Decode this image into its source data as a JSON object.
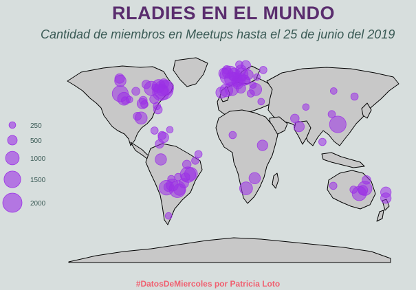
{
  "title": "RLADIES EN EL MUNDO",
  "subtitle": "Cantidad de miembros en Meetups hasta el 25 de junio del 2019",
  "caption": "#DatosDeMiercoles por Patricia Loto",
  "colors": {
    "bubble": "#9b30e6",
    "land": "#c8c8c8",
    "background": "#d7dedd"
  },
  "legend": [
    {
      "label": "250",
      "members": 250
    },
    {
      "label": "500",
      "members": 500
    },
    {
      "label": "1000",
      "members": 1000
    },
    {
      "label": "1500",
      "members": 1500
    },
    {
      "label": "2000",
      "members": 2000
    }
  ],
  "chapters": [
    {
      "lon": -122.4,
      "lat": 37.8,
      "members": 1400
    },
    {
      "lon": -122.3,
      "lat": 47.6,
      "members": 700
    },
    {
      "lon": -118.2,
      "lat": 34.0,
      "members": 900
    },
    {
      "lon": -117.1,
      "lat": 32.7,
      "members": 300
    },
    {
      "lon": -123.1,
      "lat": 49.3,
      "members": 500
    },
    {
      "lon": -112.1,
      "lat": 33.4,
      "members": 250
    },
    {
      "lon": -104.9,
      "lat": 39.7,
      "members": 350
    },
    {
      "lon": -97.7,
      "lat": 30.3,
      "members": 600
    },
    {
      "lon": -96.8,
      "lat": 32.8,
      "members": 350
    },
    {
      "lon": -95.4,
      "lat": 29.8,
      "members": 300
    },
    {
      "lon": -93.3,
      "lat": 44.9,
      "members": 400
    },
    {
      "lon": -87.6,
      "lat": 41.9,
      "members": 1100
    },
    {
      "lon": -84.4,
      "lat": 33.7,
      "members": 450
    },
    {
      "lon": -83.0,
      "lat": 42.3,
      "members": 300
    },
    {
      "lon": -79.4,
      "lat": 43.7,
      "members": 900
    },
    {
      "lon": -77.0,
      "lat": 38.9,
      "members": 1500
    },
    {
      "lon": -75.2,
      "lat": 40.0,
      "members": 600
    },
    {
      "lon": -74.0,
      "lat": 40.7,
      "members": 2000
    },
    {
      "lon": -71.1,
      "lat": 42.4,
      "members": 1200
    },
    {
      "lon": -73.6,
      "lat": 45.5,
      "members": 500
    },
    {
      "lon": -80.2,
      "lat": 25.8,
      "members": 400
    },
    {
      "lon": -81.4,
      "lat": 28.5,
      "members": 300
    },
    {
      "lon": -99.1,
      "lat": 19.4,
      "members": 800
    },
    {
      "lon": -103.3,
      "lat": 20.7,
      "members": 350
    },
    {
      "lon": -84.1,
      "lat": 9.9,
      "members": 300
    },
    {
      "lon": -74.1,
      "lat": 4.7,
      "members": 600
    },
    {
      "lon": -75.6,
      "lat": 6.2,
      "members": 350
    },
    {
      "lon": -78.5,
      "lat": -0.2,
      "members": 400
    },
    {
      "lon": -77.0,
      "lat": -12.0,
      "members": 700
    },
    {
      "lon": -66.9,
      "lat": 10.5,
      "members": 250
    },
    {
      "lon": -43.2,
      "lat": -22.9,
      "members": 900
    },
    {
      "lon": -46.6,
      "lat": -23.5,
      "members": 1300
    },
    {
      "lon": -49.3,
      "lat": -25.4,
      "members": 400
    },
    {
      "lon": -51.2,
      "lat": -30.0,
      "members": 500
    },
    {
      "lon": -47.9,
      "lat": -15.8,
      "members": 400
    },
    {
      "lon": -38.5,
      "lat": -12.9,
      "members": 300
    },
    {
      "lon": -34.9,
      "lat": -8.0,
      "members": 300
    },
    {
      "lon": -58.4,
      "lat": -34.6,
      "members": 1500
    },
    {
      "lon": -64.2,
      "lat": -31.4,
      "members": 800
    },
    {
      "lon": -65.2,
      "lat": -26.8,
      "members": 300
    },
    {
      "lon": -68.8,
      "lat": -32.9,
      "members": 400
    },
    {
      "lon": -70.6,
      "lat": -33.4,
      "members": 1200
    },
    {
      "lon": -56.2,
      "lat": -34.9,
      "members": 700
    },
    {
      "lon": -57.6,
      "lat": -25.3,
      "members": 300
    },
    {
      "lon": -68.3,
      "lat": -54.8,
      "members": 250
    },
    {
      "lon": -0.1,
      "lat": 51.5,
      "members": 2000
    },
    {
      "lon": -2.2,
      "lat": 53.5,
      "members": 600
    },
    {
      "lon": -3.2,
      "lat": 55.9,
      "members": 400
    },
    {
      "lon": -6.3,
      "lat": 53.3,
      "members": 600
    },
    {
      "lon": 2.3,
      "lat": 48.9,
      "members": 1100
    },
    {
      "lon": 4.9,
      "lat": 52.4,
      "members": 900
    },
    {
      "lon": 4.4,
      "lat": 50.8,
      "members": 400
    },
    {
      "lon": 8.7,
      "lat": 50.1,
      "members": 500
    },
    {
      "lon": 13.4,
      "lat": 52.5,
      "members": 900
    },
    {
      "lon": 11.6,
      "lat": 48.1,
      "members": 600
    },
    {
      "lon": 8.5,
      "lat": 47.4,
      "members": 700
    },
    {
      "lon": 16.4,
      "lat": 48.2,
      "members": 600
    },
    {
      "lon": 12.6,
      "lat": 55.7,
      "members": 600
    },
    {
      "lon": 18.1,
      "lat": 59.3,
      "members": 500
    },
    {
      "lon": 10.8,
      "lat": 59.9,
      "members": 300
    },
    {
      "lon": 21.0,
      "lat": 52.2,
      "members": 500
    },
    {
      "lon": 14.4,
      "lat": 50.1,
      "members": 300
    },
    {
      "lon": 19.0,
      "lat": 47.5,
      "members": 300
    },
    {
      "lon": -3.7,
      "lat": 40.4,
      "members": 900
    },
    {
      "lon": 2.2,
      "lat": 41.4,
      "members": 1000
    },
    {
      "lon": -9.1,
      "lat": 38.7,
      "members": 700
    },
    {
      "lon": 9.2,
      "lat": 45.5,
      "members": 600
    },
    {
      "lon": 12.5,
      "lat": 41.9,
      "members": 500
    },
    {
      "lon": 23.7,
      "lat": 38.0,
      "members": 300
    },
    {
      "lon": 26.1,
      "lat": 44.4,
      "members": 250
    },
    {
      "lon": 29.0,
      "lat": 41.0,
      "members": 800
    },
    {
      "lon": 37.6,
      "lat": 55.8,
      "members": 300
    },
    {
      "lon": 30.5,
      "lat": 50.4,
      "members": 250
    },
    {
      "lon": 35.2,
      "lat": 31.8,
      "members": 250
    },
    {
      "lon": 3.4,
      "lat": 6.5,
      "members": 300
    },
    {
      "lon": 36.8,
      "lat": -1.3,
      "members": 600
    },
    {
      "lon": 28.0,
      "lat": -26.2,
      "members": 700
    },
    {
      "lon": 18.4,
      "lat": -33.9,
      "members": 900
    },
    {
      "lon": 72.9,
      "lat": 19.1,
      "members": 400
    },
    {
      "lon": 77.6,
      "lat": 12.9,
      "members": 600
    },
    {
      "lon": 85.3,
      "lat": 27.7,
      "members": 250
    },
    {
      "lon": 103.8,
      "lat": 1.3,
      "members": 300
    },
    {
      "lon": 114.2,
      "lat": 22.3,
      "members": 300
    },
    {
      "lon": 121.0,
      "lat": 14.6,
      "members": 1500
    },
    {
      "lon": 116.4,
      "lat": 39.9,
      "members": 250
    },
    {
      "lon": 139.7,
      "lat": 35.7,
      "members": 300
    },
    {
      "lon": 115.9,
      "lat": -32.0,
      "members": 300
    },
    {
      "lon": 138.6,
      "lat": -34.9,
      "members": 300
    },
    {
      "lon": 145.0,
      "lat": -37.8,
      "members": 1100
    },
    {
      "lon": 149.1,
      "lat": -35.3,
      "members": 500
    },
    {
      "lon": 151.2,
      "lat": -33.9,
      "members": 1100
    },
    {
      "lon": 153.0,
      "lat": -27.5,
      "members": 400
    },
    {
      "lon": 174.8,
      "lat": -36.8,
      "members": 600
    },
    {
      "lon": 174.8,
      "lat": -41.3,
      "members": 600
    }
  ]
}
